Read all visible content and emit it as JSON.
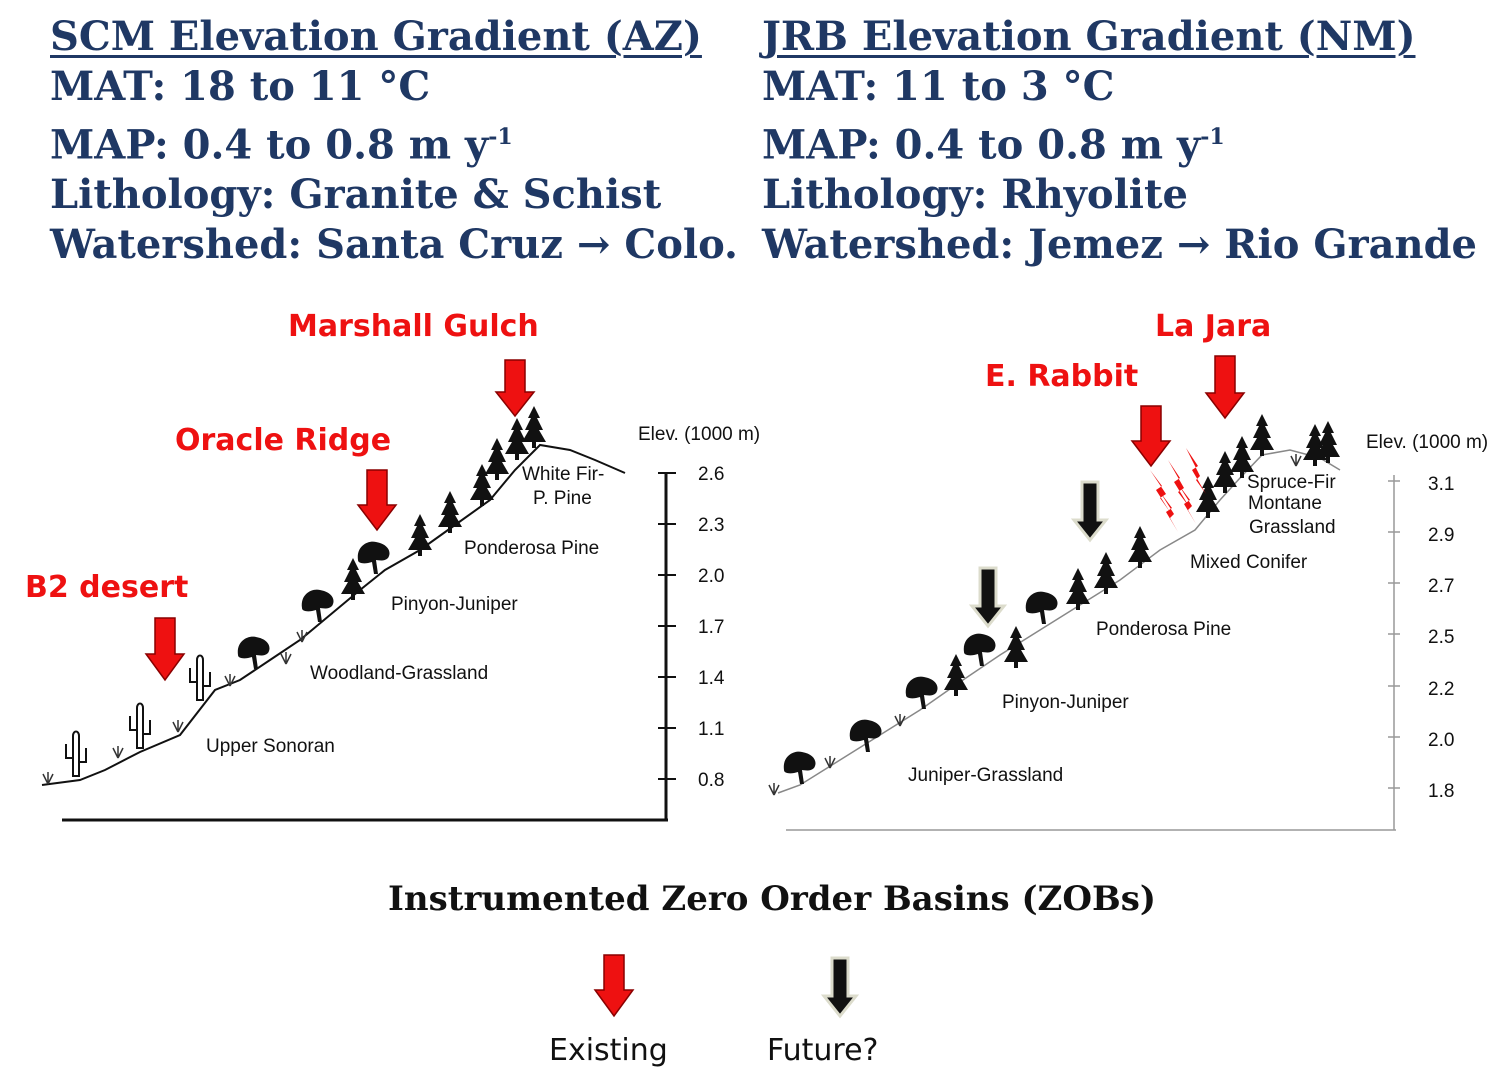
{
  "left_panel": {
    "title": "SCM Elevation Gradient (AZ)",
    "mat": "MAT:  18 to 11 °C",
    "map_prefix": "MAP:  0.4 to 0.8 m y",
    "map_exp": "-1",
    "lithology": "Lithology:  Granite & Schist",
    "watershed": "Watershed:  Santa Cruz → Colo."
  },
  "right_panel": {
    "title": "JRB Elevation Gradient (NM)",
    "mat": "MAT:  11 to 3 °C",
    "map_prefix": "MAP:  0.4 to 0.8 m y",
    "map_exp": "-1",
    "lithology": "Lithology:  Rhyolite",
    "watershed": "Watershed:  Jemez → Rio Grande"
  },
  "left_diagram": {
    "axis_title": "Elev. (1000 m)",
    "ticks": [
      "2.6",
      "2.3",
      "2.0",
      "1.7",
      "1.4",
      "1.1",
      "0.8"
    ],
    "zones": [
      "White Fir-",
      "P. Pine",
      "Ponderosa Pine",
      "Pinyon-Juniper",
      "Woodland-Grassland",
      "Upper Sonoran"
    ],
    "sites": [
      {
        "name": "Marshall Gulch",
        "status": "existing"
      },
      {
        "name": "Oracle Ridge",
        "status": "existing"
      },
      {
        "name": "B2 desert",
        "status": "existing"
      }
    ]
  },
  "right_diagram": {
    "axis_title": "Elev. (1000 m)",
    "ticks": [
      "3.1",
      "2.9",
      "2.7",
      "2.5",
      "2.2",
      "2.0",
      "1.8"
    ],
    "zones": [
      "Spruce-Fir",
      "Montane",
      "Grassland",
      "Mixed Conifer",
      "Ponderosa Pine",
      "Pinyon-Juniper",
      "Juniper-Grassland"
    ],
    "sites": [
      {
        "name": "La Jara",
        "status": "existing"
      },
      {
        "name": "E. Rabbit",
        "status": "existing"
      }
    ]
  },
  "legend": {
    "title": "Instrumented Zero Order Basins (ZOBs)",
    "existing_label": "Existing",
    "future_label": "Future?"
  },
  "colors": {
    "header_text": "#1f3864",
    "existing_arrow": "#ee1111",
    "future_arrow": "#111111",
    "site_label": "#ee1111"
  }
}
